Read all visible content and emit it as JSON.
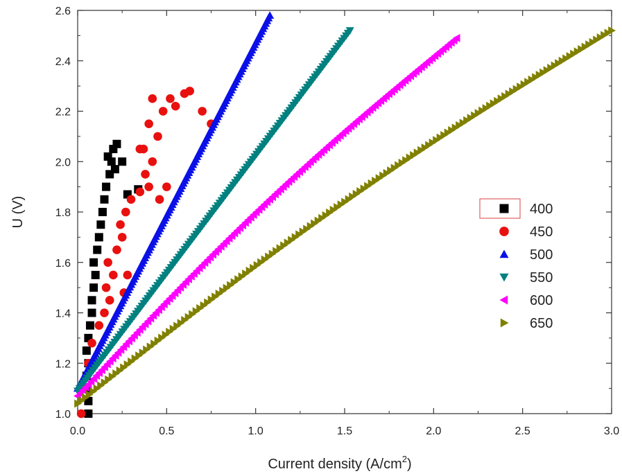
{
  "chart_data": {
    "type": "scatter",
    "xlabel_main": "Current density (A/cm",
    "xlabel_sup": "2",
    "xlabel_tail": ")",
    "ylabel": "U (V)",
    "xlim": [
      0.0,
      3.0
    ],
    "ylim": [
      1.0,
      2.6
    ],
    "x_ticks": [
      "0.0",
      "0.5",
      "1.0",
      "1.5",
      "2.0",
      "2.5",
      "3.0"
    ],
    "y_ticks": [
      "1.0",
      "1.2",
      "1.4",
      "1.6",
      "1.8",
      "2.0",
      "2.2",
      "2.4",
      "2.6"
    ],
    "grid": false,
    "legend_position": "right-middle",
    "series": [
      {
        "name": "400",
        "color": "#000000",
        "marker": "square",
        "points": [
          [
            0.06,
            1.0
          ],
          [
            0.06,
            1.05
          ],
          [
            0.05,
            1.1
          ],
          [
            0.05,
            1.15
          ],
          [
            0.06,
            1.2
          ],
          [
            0.05,
            1.25
          ],
          [
            0.06,
            1.3
          ],
          [
            0.07,
            1.35
          ],
          [
            0.08,
            1.4
          ],
          [
            0.08,
            1.45
          ],
          [
            0.09,
            1.5
          ],
          [
            0.1,
            1.55
          ],
          [
            0.09,
            1.6
          ],
          [
            0.11,
            1.65
          ],
          [
            0.12,
            1.7
          ],
          [
            0.13,
            1.75
          ],
          [
            0.14,
            1.8
          ],
          [
            0.15,
            1.85
          ],
          [
            0.16,
            1.9
          ],
          [
            0.18,
            1.95
          ],
          [
            0.19,
            2.0
          ],
          [
            0.2,
            2.05
          ],
          [
            0.22,
            2.07
          ],
          [
            0.25,
            2.0
          ],
          [
            0.28,
            1.87
          ],
          [
            0.34,
            1.89
          ],
          [
            0.17,
            2.02
          ],
          [
            0.21,
            1.97
          ]
        ]
      },
      {
        "name": "450",
        "color": "#e8110f",
        "marker": "circle",
        "points": [
          [
            0.02,
            1.0
          ],
          [
            0.03,
            1.1
          ],
          [
            0.06,
            1.2
          ],
          [
            0.08,
            1.28
          ],
          [
            0.12,
            1.35
          ],
          [
            0.15,
            1.4
          ],
          [
            0.18,
            1.45
          ],
          [
            0.16,
            1.5
          ],
          [
            0.2,
            1.55
          ],
          [
            0.17,
            1.6
          ],
          [
            0.22,
            1.65
          ],
          [
            0.25,
            1.7
          ],
          [
            0.24,
            1.75
          ],
          [
            0.27,
            1.8
          ],
          [
            0.3,
            1.85
          ],
          [
            0.35,
            1.88
          ],
          [
            0.4,
            1.9
          ],
          [
            0.38,
            1.95
          ],
          [
            0.42,
            2.0
          ],
          [
            0.37,
            2.05
          ],
          [
            0.45,
            2.1
          ],
          [
            0.4,
            2.15
          ],
          [
            0.48,
            2.2
          ],
          [
            0.42,
            2.25
          ],
          [
            0.52,
            2.25
          ],
          [
            0.6,
            2.27
          ],
          [
            0.63,
            2.28
          ],
          [
            0.7,
            2.2
          ],
          [
            0.75,
            2.15
          ],
          [
            0.55,
            2.22
          ],
          [
            0.46,
            1.85
          ],
          [
            0.5,
            1.9
          ],
          [
            0.28,
            1.55
          ],
          [
            0.26,
            1.48
          ],
          [
            0.35,
            2.05
          ]
        ]
      },
      {
        "name": "500",
        "color": "#0a10e6",
        "marker": "triangle-up",
        "points": [
          [
            0.0,
            1.1
          ],
          [
            1.08,
            2.58
          ]
        ]
      },
      {
        "name": "550",
        "color": "#00807f",
        "marker": "triangle-down",
        "points": [
          [
            0.0,
            1.09
          ],
          [
            1.53,
            2.52
          ]
        ]
      },
      {
        "name": "600",
        "color": "#ff00ff",
        "marker": "triangle-left",
        "points": [
          [
            0.0,
            1.07
          ],
          [
            2.13,
            2.49
          ]
        ]
      },
      {
        "name": "650",
        "color": "#808000",
        "marker": "triangle-right",
        "points": [
          [
            0.0,
            1.04
          ],
          [
            3.0,
            2.52
          ]
        ]
      }
    ]
  }
}
